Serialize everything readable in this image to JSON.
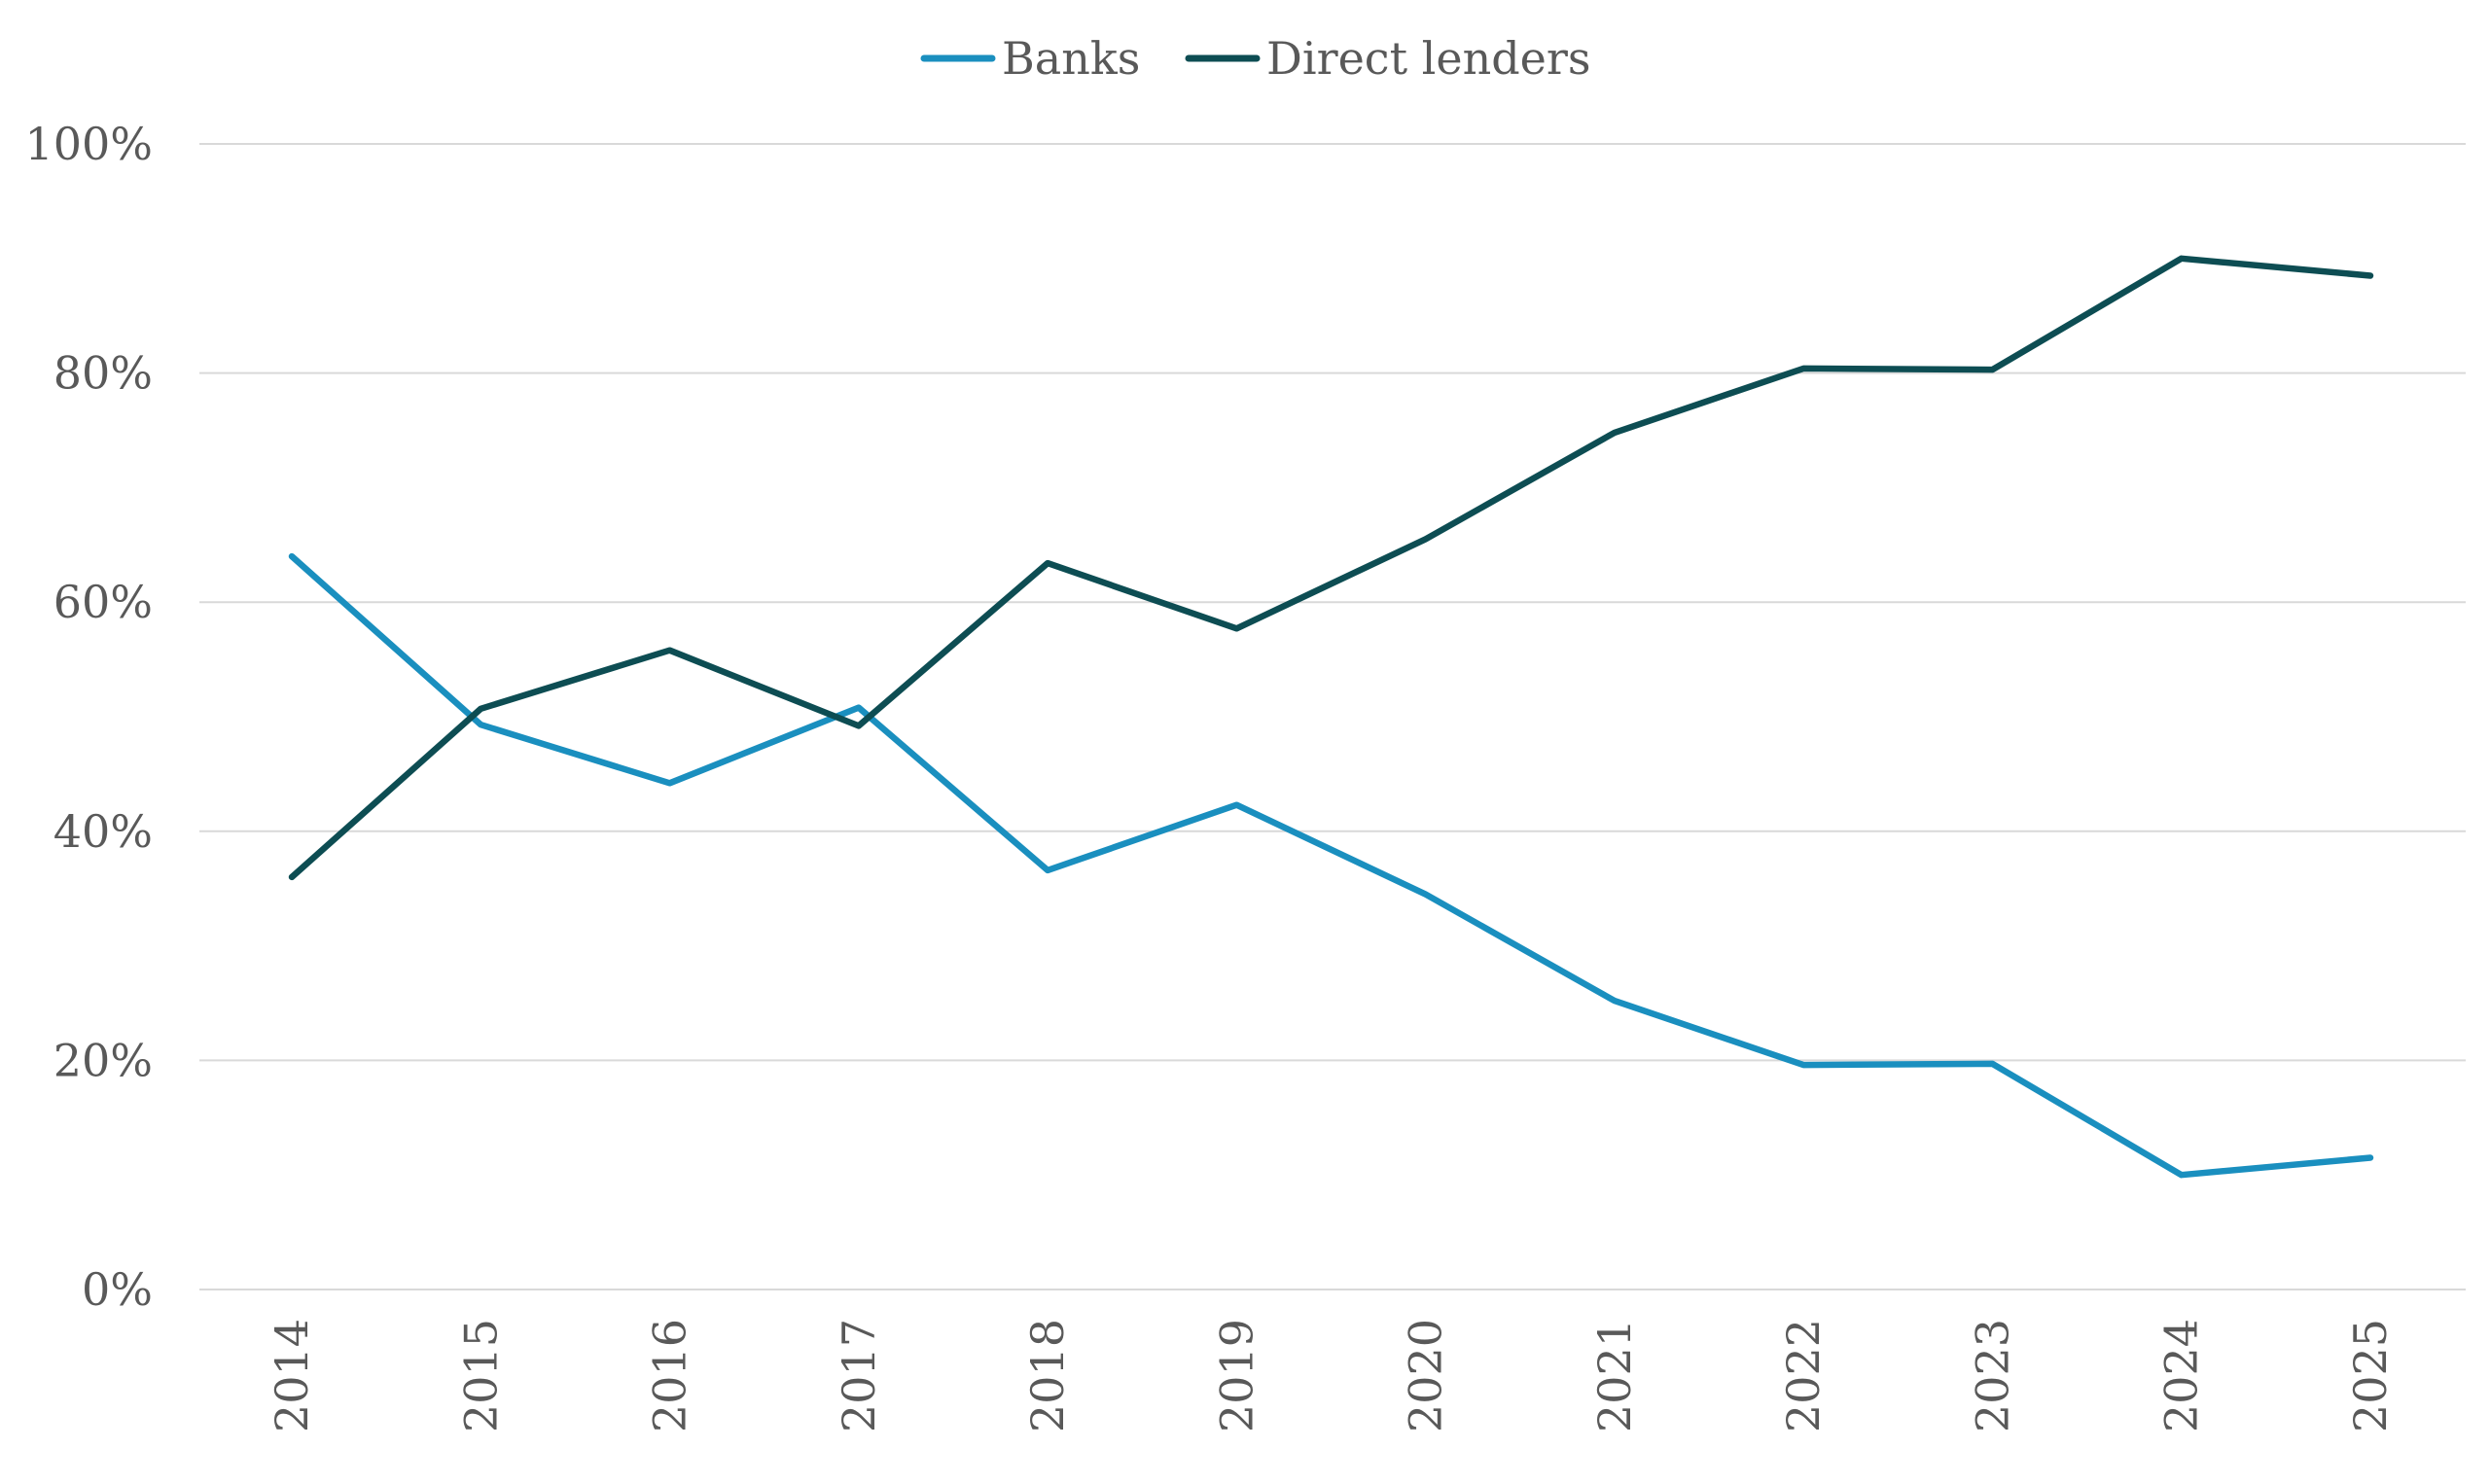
{
  "chart_data": {
    "type": "line",
    "title": "",
    "xlabel": "",
    "ylabel": "",
    "categories": [
      "2014",
      "2015",
      "2016",
      "2017",
      "2018",
      "2019",
      "2020",
      "2021",
      "2022",
      "2023",
      "2024",
      "2025"
    ],
    "series": [
      {
        "name": "Banks",
        "color": "#1a8fbf",
        "values": [
          64,
          49.3,
          44.2,
          50.8,
          36.6,
          42.3,
          34.5,
          25.2,
          19.6,
          19.7,
          10,
          11.5
        ]
      },
      {
        "name": "Direct lenders",
        "color": "#0d4d53",
        "values": [
          36,
          50.7,
          55.8,
          49.2,
          63.4,
          57.7,
          65.5,
          74.8,
          80.4,
          80.3,
          90,
          88.5
        ]
      }
    ],
    "ylim": [
      0,
      100
    ],
    "yticks": [
      0,
      20,
      40,
      60,
      80,
      100
    ],
    "ytick_labels": [
      "0%",
      "20%",
      "40%",
      "60%",
      "80%",
      "100%"
    ],
    "grid": true,
    "gridline_color": "#d9d9d9",
    "legend_position": "top-center"
  }
}
